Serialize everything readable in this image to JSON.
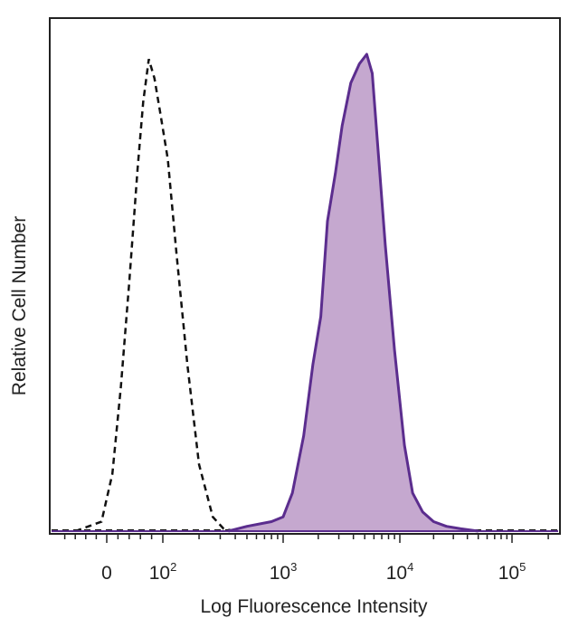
{
  "chart_data": {
    "type": "area",
    "title": "",
    "xlabel": "Log Fluorescence Intensity",
    "ylabel": "Relative Cell Number",
    "x_scale": "biexponential",
    "xlim": [
      -100,
      250000
    ],
    "ylim": [
      0,
      100
    ],
    "grid": false,
    "legend": "none",
    "x_ticks": [
      {
        "value": 0,
        "base": "0",
        "exp": ""
      },
      {
        "value": 100,
        "base": "10",
        "exp": "2"
      },
      {
        "value": 1000,
        "base": "10",
        "exp": "3"
      },
      {
        "value": 10000,
        "base": "10",
        "exp": "4"
      },
      {
        "value": 100000,
        "base": "10",
        "exp": "5"
      }
    ],
    "colors": {
      "stained_line": "#5b2d8e",
      "stained_fill": "#c5a8cf",
      "control_line": "#111111"
    },
    "series": [
      {
        "style": "dashed-outline",
        "x": [
          -60,
          -10,
          10,
          25,
          40,
          55,
          65,
          75,
          85,
          95,
          110,
          130,
          160,
          200,
          260,
          320,
          400
        ],
        "y": [
          0,
          2,
          12,
          30,
          52,
          76,
          90,
          99,
          95,
          88,
          78,
          58,
          35,
          14,
          3,
          0.5,
          0
        ]
      },
      {
        "style": "filled",
        "x": [
          350,
          500,
          800,
          1000,
          1200,
          1500,
          1800,
          2100,
          2400,
          2800,
          3200,
          3800,
          4500,
          5200,
          5800,
          6500,
          7500,
          9000,
          11000,
          13000,
          16000,
          20000,
          26000,
          35000,
          50000
        ],
        "y": [
          0,
          1,
          2,
          3,
          8,
          20,
          35,
          45,
          65,
          75,
          85,
          94,
          98,
          100,
          96,
          80,
          60,
          38,
          18,
          8,
          4,
          2,
          1,
          0.5,
          0
        ]
      }
    ]
  }
}
